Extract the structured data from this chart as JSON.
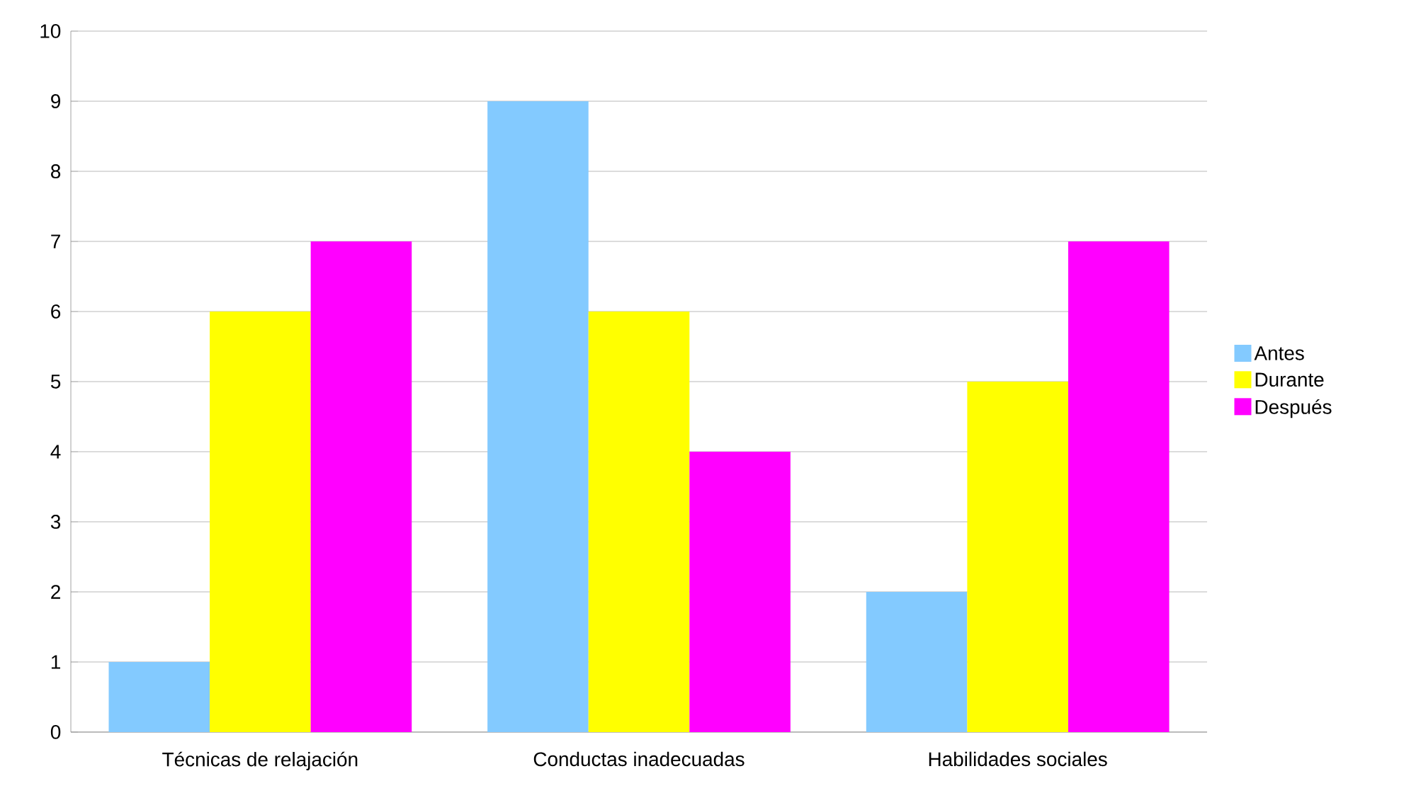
{
  "chart_data": {
    "type": "bar",
    "categories": [
      "Técnicas de relajación",
      "Conductas inadecuadas",
      "Habilidades sociales"
    ],
    "series": [
      {
        "name": "Antes",
        "color": "#83caff",
        "values": [
          1,
          9,
          2
        ]
      },
      {
        "name": "Durante",
        "color": "#ffff00",
        "values": [
          6,
          6,
          5
        ]
      },
      {
        "name": "Después",
        "color": "#ff00ff",
        "values": [
          7,
          4,
          7
        ]
      }
    ],
    "ylim": [
      0,
      10
    ],
    "yticks": [
      0,
      1,
      2,
      3,
      4,
      5,
      6,
      7,
      8,
      9,
      10
    ],
    "grid": "y",
    "legend": "right"
  }
}
